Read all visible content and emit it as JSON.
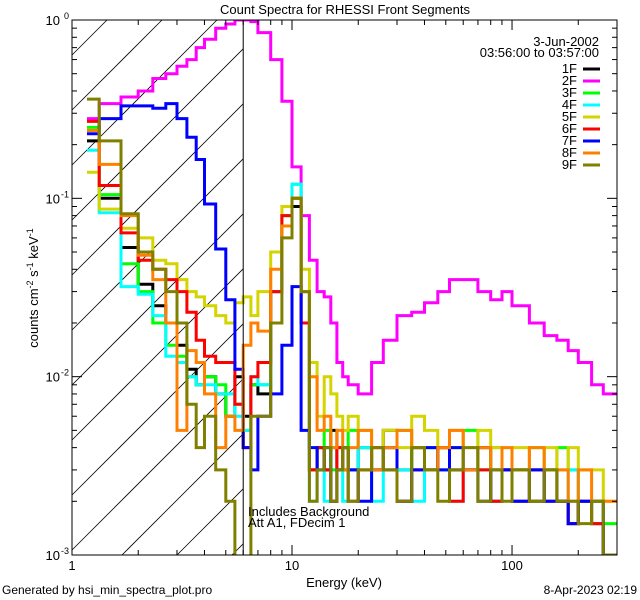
{
  "chart_data": {
    "type": "line",
    "step": true,
    "title": "Count Spectra for RHESSI Front Segments",
    "xlabel": "Energy (keV)",
    "ylabel_parts": [
      [
        "counts cm",
        ""
      ],
      [
        "-2",
        "sup"
      ],
      [
        " s",
        ""
      ],
      [
        "-1",
        "sup"
      ],
      [
        " keV",
        ""
      ],
      [
        "-1",
        "sup"
      ]
    ],
    "xscale": "log",
    "yscale": "log",
    "xlim": [
      1,
      300
    ],
    "ylim": [
      0.001,
      1
    ],
    "xticks": [
      {
        "value": 1,
        "label": "1"
      },
      {
        "value": 10,
        "label": "10"
      },
      {
        "value": 100,
        "label": "100"
      }
    ],
    "yticks": [
      {
        "value": 0.001,
        "base": "10",
        "exp": "-3"
      },
      {
        "value": 0.01,
        "base": "10",
        "exp": "-2"
      },
      {
        "value": 0.1,
        "base": "10",
        "exp": "-1"
      },
      {
        "value": 1,
        "base": "10",
        "exp": "0"
      }
    ],
    "marker_line_energy": 6,
    "annotation": [
      "Includes Background",
      "Att A1, FDecim 1"
    ],
    "date": "3-Jun-2002",
    "time_range": "03:56:00 to 03:57:00",
    "legend_position": "top-right",
    "energy_edges": [
      1.17,
      1.33,
      1.67,
      2,
      2.33,
      2.67,
      3,
      3.33,
      3.67,
      4,
      4.5,
      5,
      5.5,
      6,
      6.5,
      7,
      8,
      9,
      10,
      11,
      12,
      13,
      14,
      15,
      16,
      17,
      18,
      20,
      23,
      26,
      30,
      35,
      40,
      46,
      52,
      60,
      70,
      80,
      90,
      100,
      120,
      140,
      160,
      180,
      200,
      230,
      260,
      300
    ],
    "series": [
      {
        "name": "1F",
        "color": "#000000",
        "values": [
          0.21,
          0.1,
          0.053,
          0.033,
          0.025,
          0.02,
          0.015,
          0.011,
          0.009,
          0.01,
          0.008,
          0.006,
          0.01,
          0.006,
          0.009,
          0.008,
          0.03,
          0.07,
          0.09,
          0.02,
          0.003,
          0.004,
          0.003,
          0.005,
          0.003,
          0.004,
          0.003,
          0.004,
          0.003,
          0.005,
          0.003,
          0.004,
          0.003,
          0.004,
          0.003,
          0.003,
          0.004,
          0.002,
          0.003,
          0.003,
          0.002,
          0.003,
          0.002,
          0.0015,
          0.002,
          0.0015,
          0.001
        ]
      },
      {
        "name": "2F",
        "color": "#ff00ff",
        "values": [
          0.28,
          0.34,
          0.37,
          0.4,
          0.47,
          0.5,
          0.55,
          0.6,
          0.7,
          0.78,
          0.9,
          0.95,
          1.0,
          1.0,
          0.98,
          0.85,
          0.6,
          0.35,
          0.15,
          0.08,
          0.045,
          0.03,
          0.028,
          0.02,
          0.012,
          0.01,
          0.009,
          0.008,
          0.012,
          0.016,
          0.022,
          0.023,
          0.026,
          0.03,
          0.035,
          0.035,
          0.03,
          0.027,
          0.03,
          0.025,
          0.02,
          0.017,
          0.016,
          0.014,
          0.012,
          0.009,
          0.008
        ]
      },
      {
        "name": "3F",
        "color": "#00ff00",
        "values": [
          0.25,
          0.105,
          0.043,
          0.03,
          0.02,
          0.015,
          0.013,
          0.01,
          0.009,
          0.01,
          0.009,
          0.006,
          0.007,
          0.005,
          0.009,
          0.009,
          0.03,
          0.08,
          0.12,
          0.03,
          0.003,
          0.004,
          0.005,
          0.003,
          0.004,
          0.003,
          0.005,
          0.004,
          0.003,
          0.004,
          0.005,
          0.003,
          0.004,
          0.003,
          0.004,
          0.005,
          0.003,
          0.004,
          0.003,
          0.003,
          0.004,
          0.003,
          0.004,
          0.003,
          0.002,
          0.002,
          0.0015
        ]
      },
      {
        "name": "4F",
        "color": "#00ffff",
        "values": [
          0.186,
          0.083,
          0.032,
          0.029,
          0.022,
          0.013,
          0.012,
          0.01,
          0.009,
          0.009,
          0.008,
          0.008,
          0.006,
          0.005,
          0.01,
          0.009,
          0.03,
          0.08,
          0.12,
          0.03,
          0.002,
          0.003,
          0.002,
          0.004,
          0.003,
          0.002,
          0.003,
          0.004,
          0.002,
          0.003,
          0.003,
          0.002,
          0.004,
          0.003,
          0.002,
          0.003,
          0.003,
          0.002,
          0.003,
          0.002,
          0.003,
          0.002,
          0.002,
          0.003,
          0.002,
          0.0015,
          0.001
        ]
      },
      {
        "name": "5F",
        "color": "#d4d400",
        "values": [
          0.14,
          0.087,
          0.068,
          0.06,
          0.045,
          0.043,
          0.035,
          0.03,
          0.028,
          0.025,
          0.022,
          0.02,
          0.026,
          0.028,
          0.022,
          0.03,
          0.05,
          0.09,
          0.1,
          0.04,
          0.012,
          0.006,
          0.01,
          0.008,
          0.006,
          0.005,
          0.006,
          0.005,
          0.004,
          0.005,
          0.004,
          0.006,
          0.005,
          0.004,
          0.005,
          0.004,
          0.005,
          0.004,
          0.003,
          0.004,
          0.003,
          0.004,
          0.003,
          0.004,
          0.003,
          0.003,
          0.002
        ]
      },
      {
        "name": "6F",
        "color": "#ff0000",
        "values": [
          0.27,
          0.118,
          0.064,
          0.045,
          0.04,
          0.035,
          0.03,
          0.023,
          0.016,
          0.013,
          0.012,
          0.012,
          0.007,
          0.004,
          0.01,
          0.012,
          0.03,
          0.08,
          0.1,
          0.02,
          0.003,
          0.004,
          0.003,
          0.002,
          0.004,
          0.003,
          0.002,
          0.003,
          0.004,
          0.003,
          0.002,
          0.003,
          0.003,
          0.004,
          0.002,
          0.003,
          0.003,
          0.002,
          0.003,
          0.002,
          0.003,
          0.002,
          0.002,
          0.0015,
          0.002,
          0.0015,
          0.001
        ]
      },
      {
        "name": "7F",
        "color": "#0000ff",
        "values": [
          0.23,
          0.28,
          0.33,
          0.33,
          0.32,
          0.34,
          0.28,
          0.22,
          0.165,
          0.093,
          0.052,
          0.027,
          0.011,
          0.004,
          0.003,
          0.006,
          0.008,
          0.015,
          0.032,
          0.005,
          0.004,
          0.003,
          0.004,
          0.002,
          0.003,
          0.004,
          0.003,
          0.002,
          0.003,
          0.004,
          0.002,
          0.003,
          0.004,
          0.003,
          0.004,
          0.003,
          0.002,
          0.003,
          0.003,
          0.002,
          0.003,
          0.002,
          0.002,
          0.0015,
          0.002,
          0.002,
          0.001
        ]
      },
      {
        "name": "8F",
        "color": "#ff8000",
        "values": [
          0.24,
          0.155,
          0.08,
          0.048,
          0.035,
          0.02,
          0.005,
          0.014,
          0.012,
          0.008,
          0.004,
          0.006,
          0.005,
          0.015,
          0.02,
          0.018,
          0.04,
          0.07,
          0.1,
          0.03,
          0.01,
          0.005,
          0.006,
          0.004,
          0.005,
          0.003,
          0.004,
          0.005,
          0.003,
          0.004,
          0.005,
          0.004,
          0.003,
          0.004,
          0.005,
          0.003,
          0.004,
          0.003,
          0.004,
          0.003,
          0.004,
          0.003,
          0.003,
          0.002,
          0.003,
          0.002,
          0.002
        ]
      },
      {
        "name": "9F",
        "color": "#808000",
        "values": [
          0.36,
          0.21,
          0.082,
          0.05,
          0.04,
          0.03,
          0.02,
          0.007,
          0.004,
          0.006,
          0.003,
          0.002,
          0.0008,
          0.0008,
          0.006,
          0.006,
          0.02,
          0.06,
          0.1,
          0.03,
          0.002,
          0.003,
          0.004,
          0.002,
          0.003,
          0.004,
          0.002,
          0.003,
          0.004,
          0.003,
          0.002,
          0.004,
          0.003,
          0.002,
          0.003,
          0.004,
          0.002,
          0.003,
          0.002,
          0.003,
          0.002,
          0.003,
          0.002,
          0.002,
          0.0015,
          0.002,
          0.001
        ]
      }
    ]
  },
  "footer": {
    "generated_by": "Generated by hsi_min_spectra_plot.pro",
    "timestamp": "8-Apr-2023 02:19"
  }
}
